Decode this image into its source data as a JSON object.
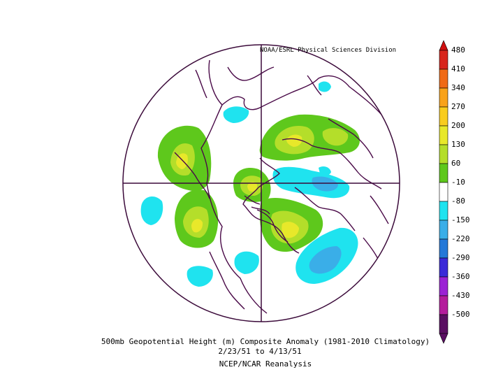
{
  "credit": "NOAA/ESRL Physical Sciences Division",
  "caption": {
    "line1": "500mb Geopotential Height (m) Composite Anomaly (1981-2010 Climatology)",
    "line2": "2/23/51   to 4/13/51",
    "line3": "NCEP/NCAR Reanalysis"
  },
  "colorbar": {
    "labels": [
      "480",
      "410",
      "340",
      "270",
      "200",
      "130",
      "60",
      "-10",
      "-80",
      "-150",
      "-220",
      "-290",
      "-360",
      "-430",
      "-500"
    ],
    "colors": [
      "#d8261c",
      "#f06a16",
      "#f9a21a",
      "#f9cc1e",
      "#e8e82a",
      "#b4de2a",
      "#5ec81c",
      "#ffffff",
      "#1fe3ef",
      "#3aaee8",
      "#2478d8",
      "#3a2ad8",
      "#9b22d4",
      "#b41c9c",
      "#5a0e62"
    ],
    "top_arrow_color": "#d01010",
    "bottom_arrow_color": "#5a0e62"
  }
}
